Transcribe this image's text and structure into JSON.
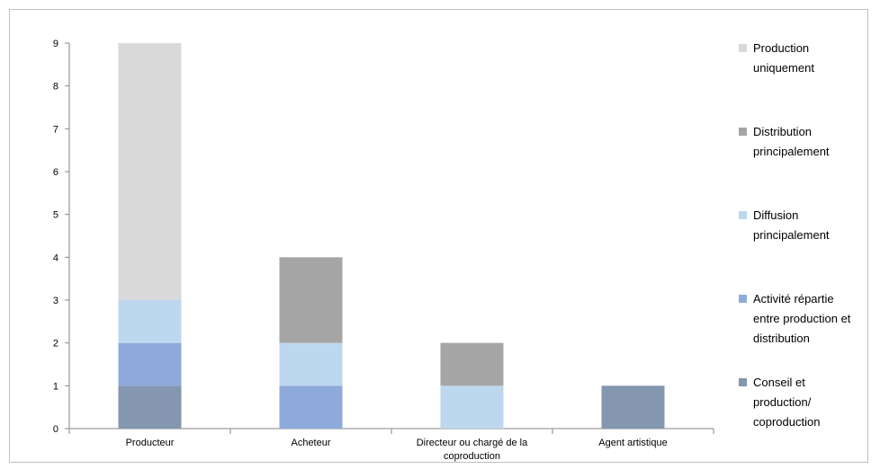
{
  "chart_data": {
    "type": "bar",
    "stacked": true,
    "categories": [
      "Producteur",
      "Acheteur",
      "Directeur ou chargé de la coproduction",
      "Agent artistique"
    ],
    "category_label_lines": [
      [
        "Producteur"
      ],
      [
        "Acheteur"
      ],
      [
        "Directeur ou chargé de la",
        "coproduction"
      ],
      [
        "Agent artistique"
      ]
    ],
    "ylim": [
      0,
      9
    ],
    "yticks": [
      0,
      1,
      2,
      3,
      4,
      5,
      6,
      7,
      8,
      9
    ],
    "grid": false,
    "legend_position": "right",
    "series": [
      {
        "name": "Conseil et production/ coproduction",
        "legend_lines": [
          "Conseil et",
          "production/",
          "coproduction"
        ],
        "color": "#8496b0",
        "values": [
          1,
          0,
          0,
          1
        ]
      },
      {
        "name": "Activité répartie entre production et distribution",
        "legend_lines": [
          "Activité répartie",
          "entre production et",
          "distribution"
        ],
        "color": "#8eaadb",
        "values": [
          1,
          1,
          0,
          0
        ]
      },
      {
        "name": "Diffusion principalement",
        "legend_lines": [
          "Diffusion",
          "principalement"
        ],
        "color": "#bdd7ee",
        "values": [
          1,
          1,
          1,
          0
        ]
      },
      {
        "name": "Distribution principalement",
        "legend_lines": [
          "Distribution",
          "principalement"
        ],
        "color": "#a5a5a5",
        "values": [
          0,
          2,
          1,
          0
        ]
      },
      {
        "name": "Production uniquement",
        "legend_lines": [
          "Production",
          "uniquement"
        ],
        "color": "#d9d9d9",
        "values": [
          6,
          0,
          0,
          0
        ]
      }
    ]
  }
}
